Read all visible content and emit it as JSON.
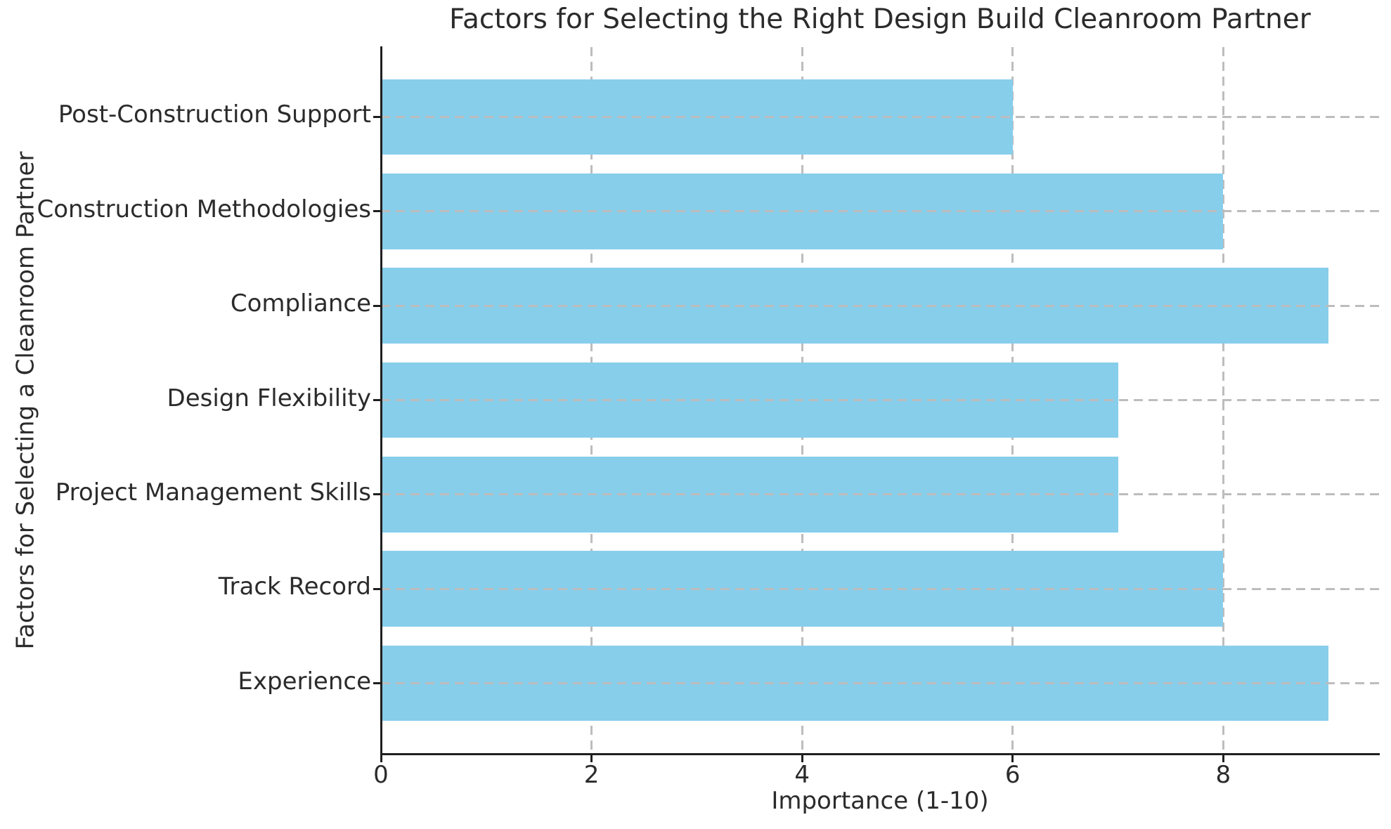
{
  "chart_data": {
    "type": "bar",
    "orientation": "horizontal",
    "title": "Factors for Selecting the Right Design Build Cleanroom Partner",
    "xlabel": "Importance (1-10)",
    "ylabel": "Factors for Selecting a Cleanroom Partner",
    "categories": [
      "Post-Construction Support",
      "Construction Methodologies",
      "Compliance",
      "Design Flexibility",
      "Project Management Skills",
      "Track Record",
      "Experience"
    ],
    "values": [
      6,
      8,
      9,
      7,
      7,
      8,
      9
    ],
    "xticks": [
      0,
      2,
      4,
      6,
      8
    ],
    "xtick_labels": [
      "0",
      "2",
      "4",
      "6",
      "8"
    ],
    "xlim": [
      0,
      9.48
    ],
    "value_scale_note": "Importance rated 1-10",
    "bar_color": "#87CEEB",
    "grid_color": "#bdbdbd",
    "axis_color": "#1f1f1f",
    "grid": "dashed, vertical lines behind bars, horizontal lines over bars",
    "legend": "none"
  }
}
